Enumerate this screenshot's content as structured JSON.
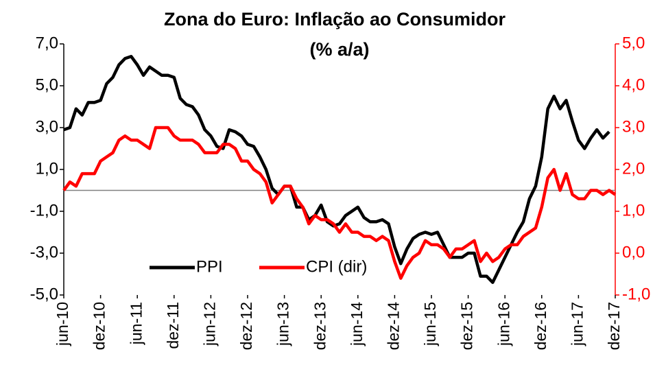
{
  "chart_data": {
    "type": "line",
    "title": "Zona do Euro: Inflação ao Consumidor",
    "subtitle": "(% a/a)",
    "categories": [
      "jun-10",
      null,
      null,
      null,
      null,
      null,
      "dez-10",
      null,
      null,
      null,
      null,
      null,
      "jun-11",
      null,
      null,
      null,
      null,
      null,
      "dez-11",
      null,
      null,
      null,
      null,
      null,
      "jun-12",
      null,
      null,
      null,
      null,
      null,
      "dez-12",
      null,
      null,
      null,
      null,
      null,
      "jun-13",
      null,
      null,
      null,
      null,
      null,
      "dez-13",
      null,
      null,
      null,
      null,
      null,
      "jun-14",
      null,
      null,
      null,
      null,
      null,
      "dez-14",
      null,
      null,
      null,
      null,
      null,
      "jun-15",
      null,
      null,
      null,
      null,
      null,
      "dez-15",
      null,
      null,
      null,
      null,
      null,
      "jun-16",
      null,
      null,
      null,
      null,
      null,
      "dez-16",
      null,
      null,
      null,
      null,
      null,
      "jun-17",
      null,
      null,
      null,
      null,
      null,
      "dez-17"
    ],
    "series": [
      {
        "name": "PPI",
        "color": "#000000",
        "axis": "y",
        "values": [
          2.9,
          3.0,
          3.9,
          3.6,
          4.2,
          4.2,
          4.3,
          5.1,
          5.4,
          6.0,
          6.3,
          6.4,
          6.0,
          5.5,
          5.9,
          5.7,
          5.5,
          5.5,
          5.4,
          4.4,
          4.1,
          4.0,
          3.6,
          2.9,
          2.6,
          2.1,
          2.0,
          2.9,
          2.8,
          2.6,
          2.2,
          2.1,
          1.6,
          1.0,
          0.1,
          -0.2,
          0.2,
          0.2,
          -0.8,
          -0.8,
          -1.4,
          -1.2,
          -0.7,
          -1.5,
          -1.7,
          -1.6,
          -1.2,
          -1.0,
          -0.8,
          -1.3,
          -1.5,
          -1.5,
          -1.4,
          -1.6,
          -2.7,
          -3.5,
          -2.8,
          -2.3,
          -2.1,
          -2.0,
          -2.1,
          -2.0,
          -2.6,
          -3.2,
          -3.2,
          -3.2,
          -3.0,
          -3.0,
          -4.1,
          -4.1,
          -4.4,
          -3.8,
          -3.2,
          -2.6,
          -2.0,
          -1.5,
          -0.4,
          0.2,
          1.6,
          3.9,
          4.5,
          3.9,
          4.3,
          3.3,
          2.4,
          2.0,
          2.5,
          2.9,
          2.5,
          2.8,
          null
        ]
      },
      {
        "name": "CPI (dir)",
        "color": "#ff0000",
        "axis": "y2",
        "values": [
          1.5,
          1.7,
          1.6,
          1.9,
          1.9,
          1.9,
          2.2,
          2.3,
          2.4,
          2.7,
          2.8,
          2.7,
          2.7,
          2.6,
          2.5,
          3.0,
          3.0,
          3.0,
          2.8,
          2.7,
          2.7,
          2.7,
          2.6,
          2.4,
          2.4,
          2.4,
          2.6,
          2.6,
          2.5,
          2.2,
          2.2,
          2.0,
          1.9,
          1.7,
          1.2,
          1.4,
          1.6,
          1.6,
          1.3,
          1.1,
          0.7,
          0.9,
          0.8,
          0.8,
          0.7,
          0.5,
          0.7,
          0.5,
          0.5,
          0.4,
          0.4,
          0.3,
          0.4,
          0.3,
          -0.2,
          -0.6,
          -0.3,
          -0.1,
          0.0,
          0.3,
          0.2,
          0.2,
          0.1,
          -0.1,
          0.1,
          0.1,
          0.2,
          0.3,
          -0.2,
          0.0,
          -0.2,
          -0.1,
          0.1,
          0.2,
          0.2,
          0.4,
          0.5,
          0.6,
          1.1,
          1.8,
          2.0,
          1.5,
          1.9,
          1.4,
          1.3,
          1.3,
          1.5,
          1.5,
          1.4,
          1.5,
          1.4
        ]
      }
    ],
    "ylim": [
      -5,
      7
    ],
    "yticks": [
      {
        "value": -5,
        "label": "-5,0"
      },
      {
        "value": -3,
        "label": "-3,0"
      },
      {
        "value": -1,
        "label": "-1,0"
      },
      {
        "value": 1,
        "label": "1,0"
      },
      {
        "value": 3,
        "label": "3,0"
      },
      {
        "value": 5,
        "label": "5,0"
      },
      {
        "value": 7,
        "label": "7,0"
      }
    ],
    "y2lim": [
      -1,
      5
    ],
    "y2ticks": [
      {
        "value": -1,
        "label": "-1,0"
      },
      {
        "value": 0,
        "label": "0,0"
      },
      {
        "value": 1,
        "label": "1,0"
      },
      {
        "value": 2,
        "label": "2,0"
      },
      {
        "value": 3,
        "label": "3,0"
      },
      {
        "value": 4,
        "label": "4,0"
      },
      {
        "value": 5,
        "label": "5,0"
      }
    ],
    "y2color": "#ff0000",
    "grid": false
  }
}
